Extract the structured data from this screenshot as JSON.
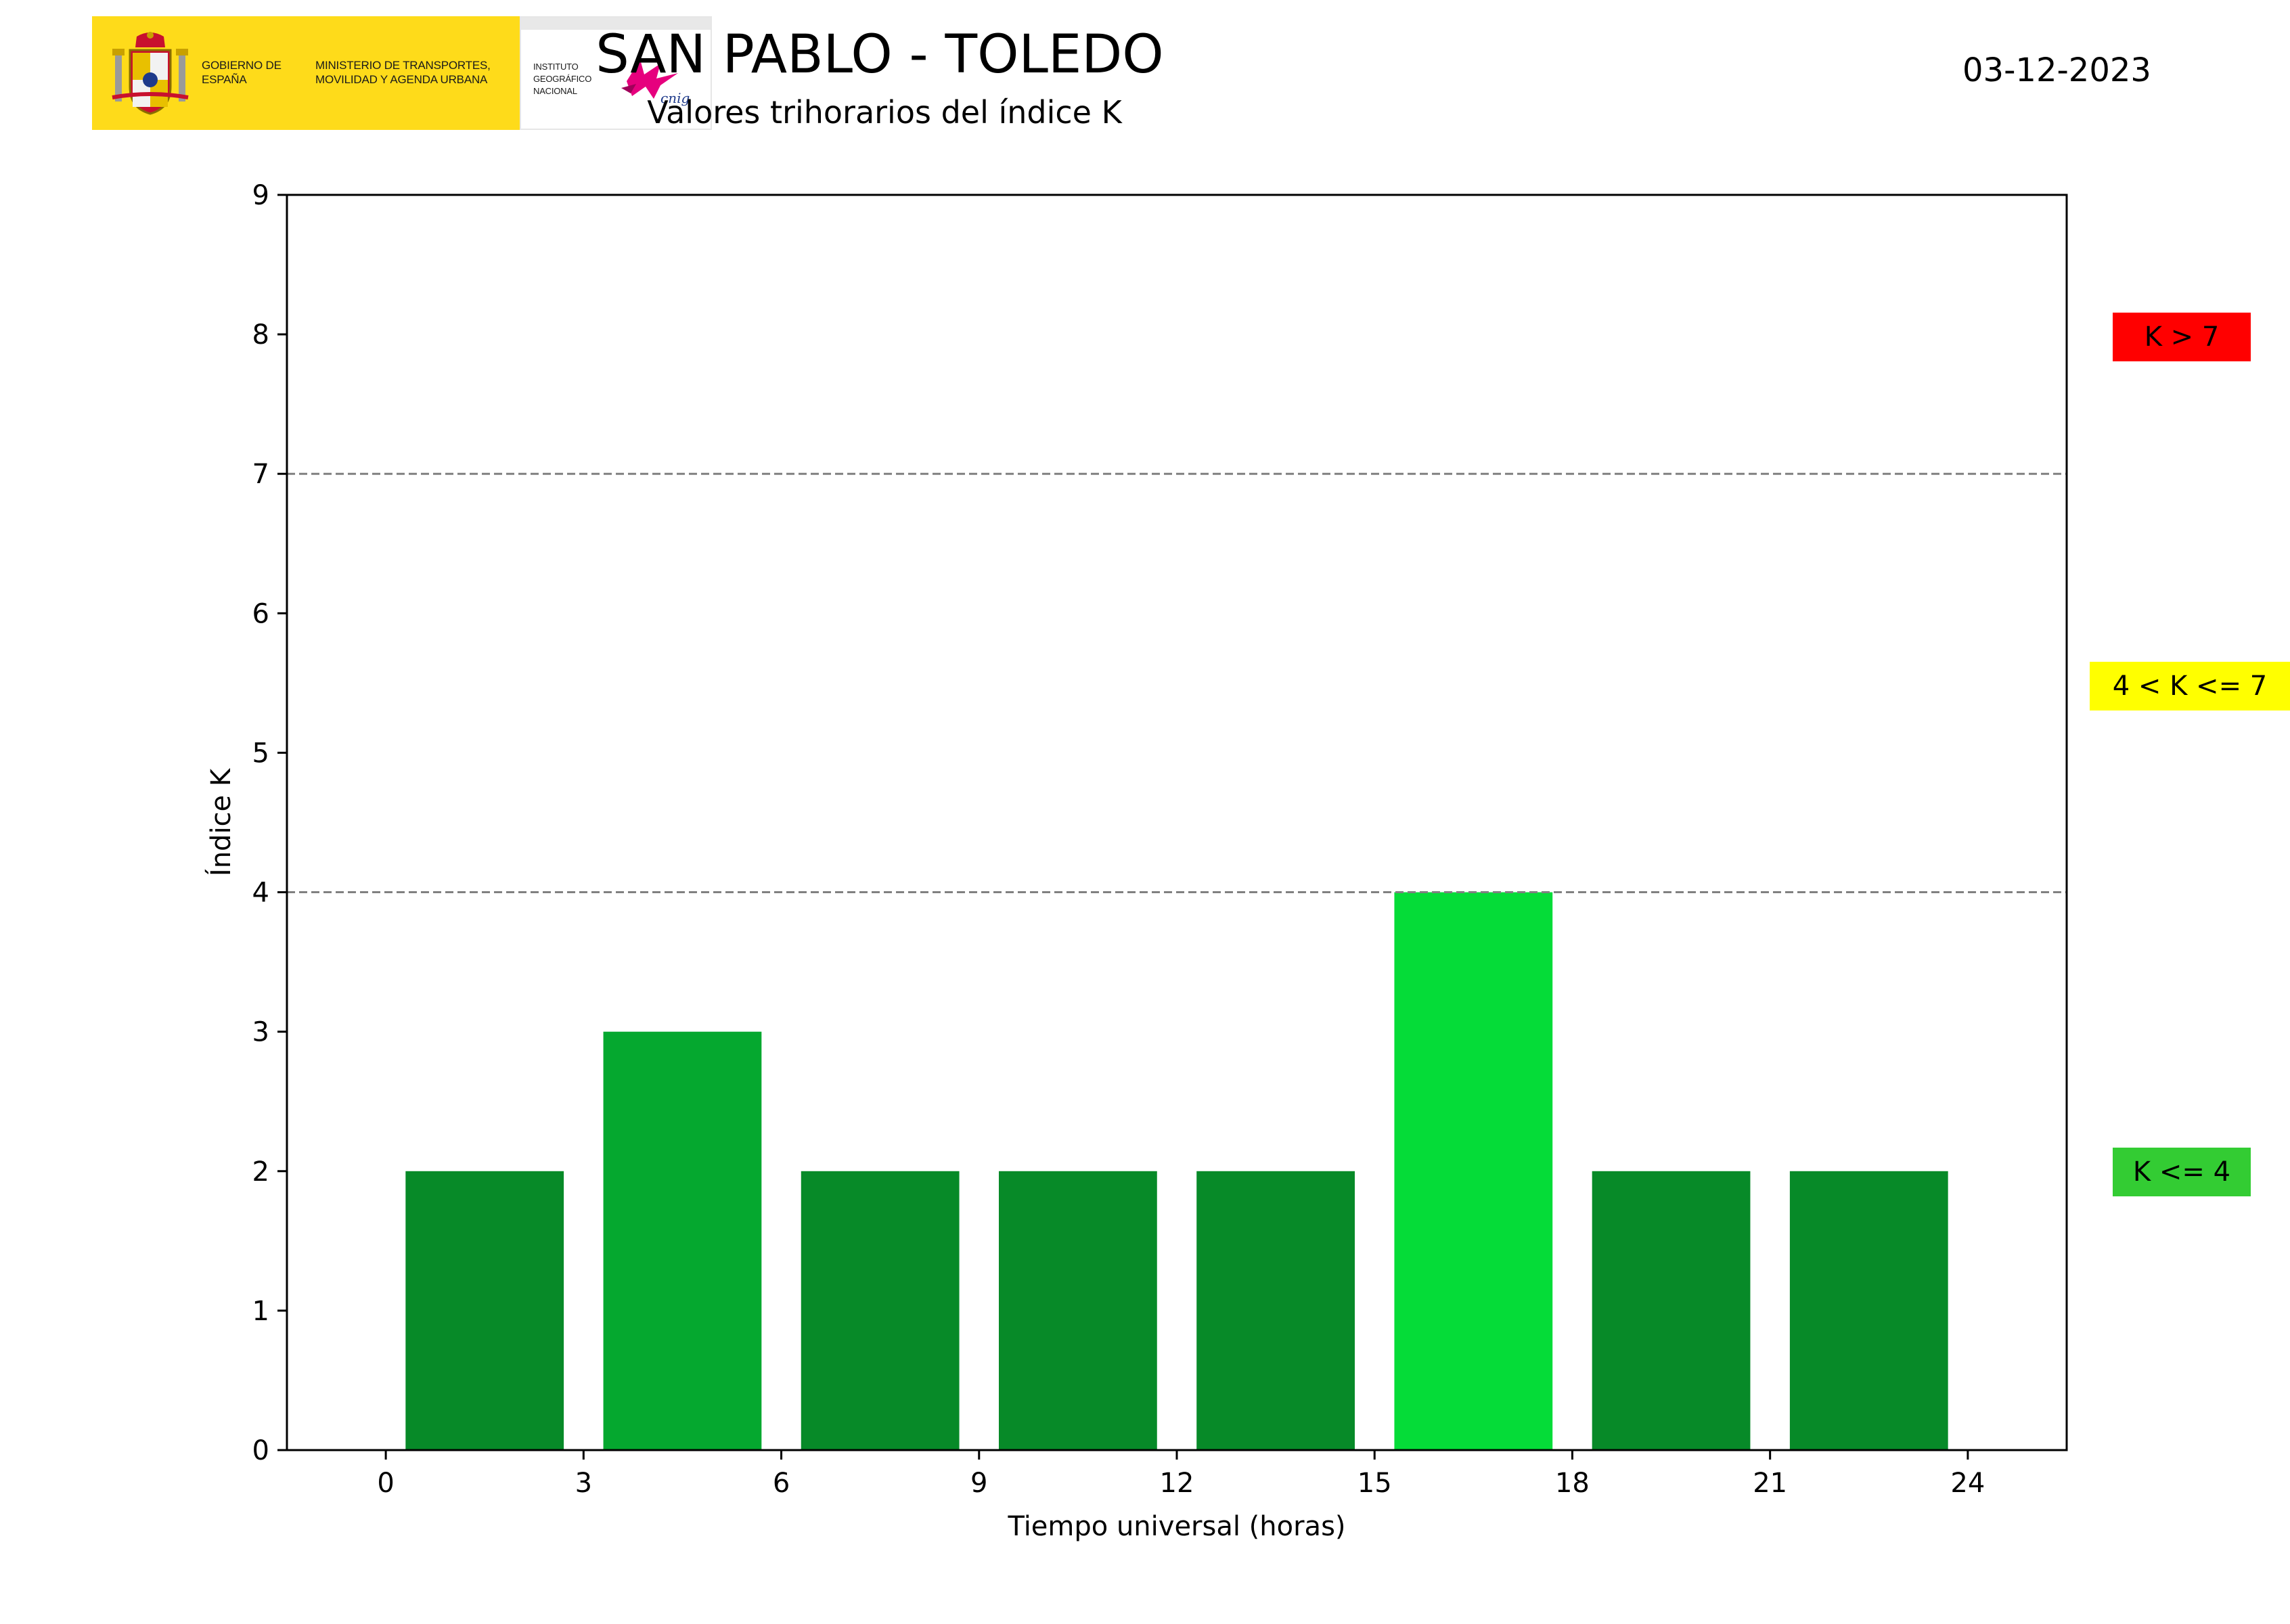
{
  "header": {
    "title": "SAN PABLO - TOLEDO",
    "subtitle": "Valores trihorarios del índice K",
    "date": "03-12-2023"
  },
  "logo": {
    "government": "GOBIERNO DE ESPAÑA",
    "ministry": "MINISTERIO DE TRANSPORTES, MOVILIDAD Y AGENDA URBANA",
    "institute": "INSTITUTO GEOGRÁFICO NACIONAL",
    "mark": "cnig",
    "colors": {
      "yellow": "#fedb1a",
      "shield_red": "#c8102e",
      "ign_magenta": "#e6007e"
    }
  },
  "legend": [
    {
      "label": "K > 7",
      "color": "#ff0000"
    },
    {
      "label": "4 < K <= 7",
      "color": "#ffff00"
    },
    {
      "label": "K <= 4",
      "color": "#33cc33"
    }
  ],
  "chart_data": {
    "type": "bar",
    "xlabel": "Tiempo universal (horas)",
    "ylabel": "Índice K",
    "xlim": [
      -1.5,
      25.5
    ],
    "ylim": [
      0,
      9
    ],
    "xticks": [
      0,
      3,
      6,
      9,
      12,
      15,
      18,
      21,
      24
    ],
    "yticks": [
      0,
      1,
      2,
      3,
      4,
      5,
      6,
      7,
      8,
      9
    ],
    "threshold_lines": [
      4,
      7
    ],
    "bar_width_hours": 2.4,
    "bars": [
      {
        "x": 1.5,
        "value": 2,
        "color": "#078a28"
      },
      {
        "x": 4.5,
        "value": 3,
        "color": "#05a82f"
      },
      {
        "x": 7.5,
        "value": 2,
        "color": "#078a28"
      },
      {
        "x": 10.5,
        "value": 2,
        "color": "#078a28"
      },
      {
        "x": 13.5,
        "value": 2,
        "color": "#078a28"
      },
      {
        "x": 16.5,
        "value": 4,
        "color": "#05dc38"
      },
      {
        "x": 19.5,
        "value": 2,
        "color": "#078a28"
      },
      {
        "x": 22.5,
        "value": 2,
        "color": "#078a28"
      }
    ],
    "grid": false
  }
}
